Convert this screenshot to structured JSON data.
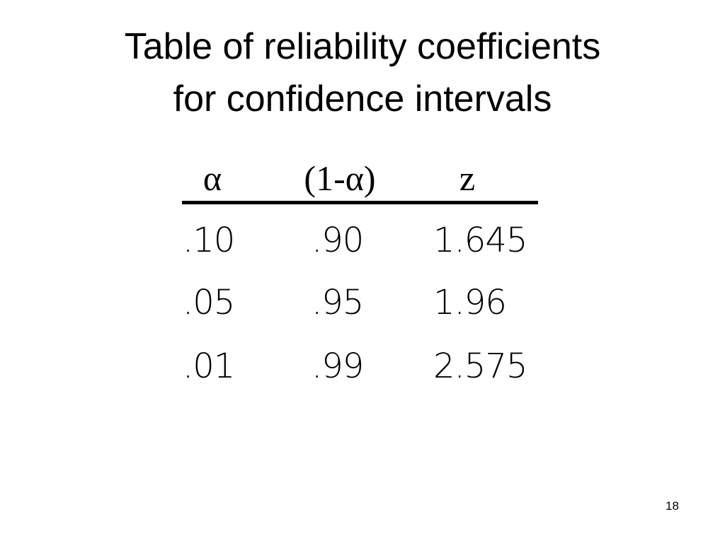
{
  "header": {
    "title": [
      "Table of reliability coefficients",
      "for confidence intervals"
    ]
  },
  "table": {
    "columns": [
      "α",
      "(1-α)",
      "z"
    ],
    "rows": [
      [
        ".10",
        ".90",
        "1.645"
      ],
      [
        ".05",
        ".95",
        "1.96"
      ],
      [
        ".01",
        ".99",
        "2.575"
      ]
    ]
  },
  "footer": {
    "page_number": "18"
  }
}
